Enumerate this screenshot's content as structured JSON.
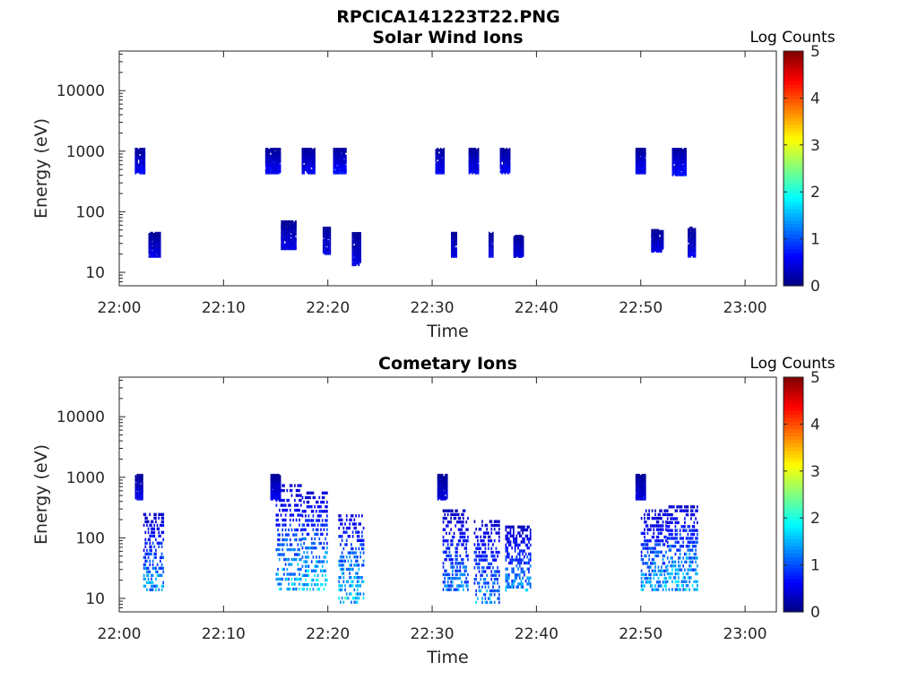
{
  "figure": {
    "title": "RPCICA141223T22.PNG"
  },
  "chart_data": [
    {
      "type": "heatmap",
      "title": "Solar Wind Ions",
      "xlabel": "Time",
      "ylabel": "Energy (eV)",
      "x_ticks": [
        "22:00",
        "22:10",
        "22:20",
        "22:30",
        "22:40",
        "22:50",
        "23:00"
      ],
      "xlim": [
        "22:00",
        "23:03"
      ],
      "y_scale": "log",
      "y_ticks": [
        10,
        100,
        1000,
        10000
      ],
      "y_tick_labels": [
        "10",
        "100",
        "1000",
        "10000"
      ],
      "ylim": [
        6,
        45000
      ],
      "colorbar": {
        "label": "Log Counts",
        "range": [
          0,
          5
        ],
        "ticks": [
          "0",
          "1",
          "2",
          "3",
          "4",
          "5"
        ],
        "colormap": "jet"
      },
      "bursts": [
        {
          "time_range": [
            "22:01.5",
            "22:02.5"
          ],
          "energy_eV": [
            430,
            1100
          ],
          "log_counts": 0.6
        },
        {
          "time_range": [
            "22:02.8",
            "22:04.0"
          ],
          "energy_eV": [
            18,
            45
          ],
          "log_counts": 0.5
        },
        {
          "time_range": [
            "22:14.0",
            "22:15.5"
          ],
          "energy_eV": [
            430,
            1100
          ],
          "log_counts": 0.6
        },
        {
          "time_range": [
            "22:15.5",
            "22:17.0"
          ],
          "energy_eV": [
            24,
            70
          ],
          "log_counts": 0.5
        },
        {
          "time_range": [
            "22:17.5",
            "22:18.8"
          ],
          "energy_eV": [
            430,
            1100
          ],
          "log_counts": 0.6
        },
        {
          "time_range": [
            "22:19.5",
            "22:20.3"
          ],
          "energy_eV": [
            20,
            55
          ],
          "log_counts": 0.5
        },
        {
          "time_range": [
            "22:20.5",
            "22:21.8"
          ],
          "energy_eV": [
            430,
            1100
          ],
          "log_counts": 0.7
        },
        {
          "time_range": [
            "22:22.3",
            "22:23.2"
          ],
          "energy_eV": [
            13,
            45
          ],
          "log_counts": 0.5
        },
        {
          "time_range": [
            "22:30.3",
            "22:31.2"
          ],
          "energy_eV": [
            430,
            1100
          ],
          "log_counts": 0.6
        },
        {
          "time_range": [
            "22:31.8",
            "22:32.4"
          ],
          "energy_eV": [
            18,
            45
          ],
          "log_counts": 0.5
        },
        {
          "time_range": [
            "22:33.5",
            "22:34.5"
          ],
          "energy_eV": [
            430,
            1100
          ],
          "log_counts": 0.6
        },
        {
          "time_range": [
            "22:35.4",
            "22:35.9"
          ],
          "energy_eV": [
            18,
            45
          ],
          "log_counts": 0.5
        },
        {
          "time_range": [
            "22:36.5",
            "22:37.5"
          ],
          "energy_eV": [
            430,
            1100
          ],
          "log_counts": 0.6
        },
        {
          "time_range": [
            "22:37.8",
            "22:38.8"
          ],
          "energy_eV": [
            18,
            40
          ],
          "log_counts": 0.5
        },
        {
          "time_range": [
            "22:49.5",
            "22:50.5"
          ],
          "energy_eV": [
            430,
            1100
          ],
          "log_counts": 0.6
        },
        {
          "time_range": [
            "22:51.0",
            "22:52.2"
          ],
          "energy_eV": [
            22,
            50
          ],
          "log_counts": 0.5
        },
        {
          "time_range": [
            "22:53.0",
            "22:54.4"
          ],
          "energy_eV": [
            400,
            1100
          ],
          "log_counts": 0.7
        },
        {
          "time_range": [
            "22:54.5",
            "22:55.3"
          ],
          "energy_eV": [
            18,
            55
          ],
          "log_counts": 0.5
        }
      ]
    },
    {
      "type": "heatmap",
      "title": "Cometary Ions",
      "xlabel": "Time",
      "ylabel": "Energy (eV)",
      "x_ticks": [
        "22:00",
        "22:10",
        "22:20",
        "22:30",
        "22:40",
        "22:50",
        "23:00"
      ],
      "xlim": [
        "22:00",
        "23:03"
      ],
      "y_scale": "log",
      "y_ticks": [
        10,
        100,
        1000,
        10000
      ],
      "y_tick_labels": [
        "10",
        "100",
        "1000",
        "10000"
      ],
      "ylim": [
        6,
        45000
      ],
      "colorbar": {
        "label": "Log Counts",
        "range": [
          0,
          5
        ],
        "ticks": [
          "0",
          "1",
          "2",
          "3",
          "4",
          "5"
        ],
        "colormap": "jet"
      },
      "bursts": [
        {
          "time_range": [
            "22:01.5",
            "22:02.3"
          ],
          "energy_eV": [
            430,
            1100
          ],
          "log_counts": 0.5
        },
        {
          "time_range": [
            "22:02.3",
            "22:04.3"
          ],
          "energy_eV": [
            13,
            260
          ],
          "log_counts": 1.4
        },
        {
          "time_range": [
            "22:14.5",
            "22:15.5"
          ],
          "energy_eV": [
            430,
            1100
          ],
          "log_counts": 0.6
        },
        {
          "time_range": [
            "22:15.0",
            "22:17.5"
          ],
          "energy_eV": [
            13,
            800
          ],
          "log_counts": 1.5
        },
        {
          "time_range": [
            "22:17.5",
            "22:20.0"
          ],
          "energy_eV": [
            13,
            600
          ],
          "log_counts": 1.6
        },
        {
          "time_range": [
            "22:21.0",
            "22:23.5"
          ],
          "energy_eV": [
            8,
            250
          ],
          "log_counts": 1.7
        },
        {
          "time_range": [
            "22:30.5",
            "22:31.5"
          ],
          "energy_eV": [
            430,
            1100
          ],
          "log_counts": 0.5
        },
        {
          "time_range": [
            "22:31.0",
            "22:33.5"
          ],
          "energy_eV": [
            13,
            300
          ],
          "log_counts": 1.2
        },
        {
          "time_range": [
            "22:34.0",
            "22:36.5"
          ],
          "energy_eV": [
            8,
            200
          ],
          "log_counts": 1.3
        },
        {
          "time_range": [
            "22:37.0",
            "22:39.5"
          ],
          "energy_eV": [
            13,
            160
          ],
          "log_counts": 1.3
        },
        {
          "time_range": [
            "22:49.5",
            "22:50.5"
          ],
          "energy_eV": [
            430,
            1100
          ],
          "log_counts": 0.5
        },
        {
          "time_range": [
            "22:50.0",
            "22:52.5"
          ],
          "energy_eV": [
            13,
            300
          ],
          "log_counts": 1.4
        },
        {
          "time_range": [
            "22:52.5",
            "22:55.5"
          ],
          "energy_eV": [
            13,
            350
          ],
          "log_counts": 1.6
        }
      ]
    }
  ]
}
